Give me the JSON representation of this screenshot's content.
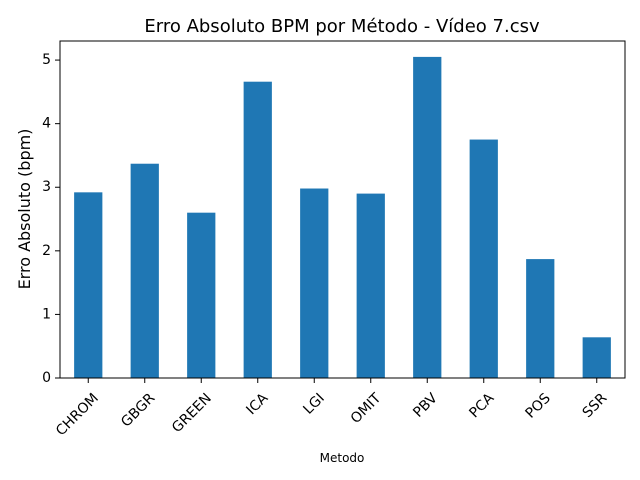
{
  "chart_data": {
    "type": "bar",
    "title": "Erro Absoluto BPM por Método - Vídeo 7.csv",
    "xlabel": "Metodo",
    "ylabel": "Erro Absoluto (bpm)",
    "categories": [
      "CHROM",
      "GBGR",
      "GREEN",
      "ICA",
      "LGI",
      "OMIT",
      "PBV",
      "PCA",
      "POS",
      "SSR"
    ],
    "values": [
      2.92,
      3.37,
      2.6,
      4.66,
      2.98,
      2.9,
      5.05,
      3.75,
      1.87,
      0.64
    ],
    "ylim": [
      0,
      5.3
    ],
    "yticks": [
      0,
      1,
      2,
      3,
      4,
      5
    ],
    "bar_color": "#1f77b4",
    "grid": false,
    "legend": "none"
  }
}
